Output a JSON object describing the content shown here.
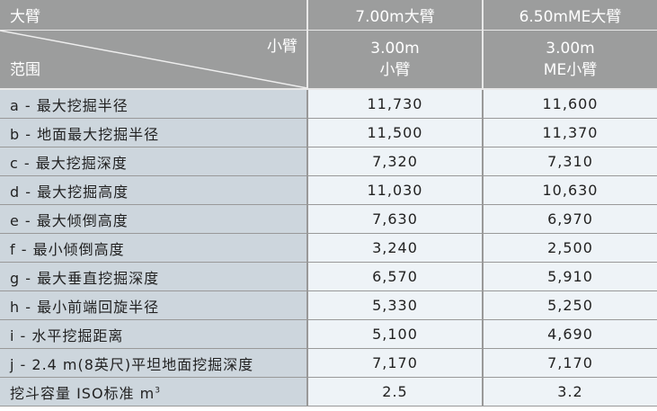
{
  "header": {
    "corner_top": "大臂",
    "corner_diag_right": "小臂",
    "corner_diag_left": "范围",
    "columns": [
      {
        "boom": "7.00m大臂",
        "arm_line1": "3.00m",
        "arm_line2": "小臂"
      },
      {
        "boom": "6.50mME大臂",
        "arm_line1": "3.00m",
        "arm_line2": "ME小臂"
      }
    ]
  },
  "rows": [
    {
      "label": "a - 最大挖掘半径",
      "v1": "11,730",
      "v2": "11,600"
    },
    {
      "label": "b - 地面最大挖掘半径",
      "v1": "11,500",
      "v2": "11,370"
    },
    {
      "label": "c - 最大挖掘深度",
      "v1": "7,320",
      "v2": "7,310"
    },
    {
      "label": "d - 最大挖掘高度",
      "v1": "11,030",
      "v2": "10,630"
    },
    {
      "label": "e - 最大倾倒高度",
      "v1": "7,630",
      "v2": "6,970"
    },
    {
      "label": "f - 最小倾倒高度",
      "v1": "3,240",
      "v2": "2,500"
    },
    {
      "label": "g - 最大垂直挖掘深度",
      "v1": "6,570",
      "v2": "5,910"
    },
    {
      "label": "h - 最小前端回旋半径",
      "v1": "5,330",
      "v2": "5,250"
    },
    {
      "label": "i - 水平挖掘距离",
      "v1": "5,100",
      "v2": "4,690"
    },
    {
      "label": "j - 2.4 m(8英尺)平坦地面挖掘深度",
      "v1": "7,170",
      "v2": "7,170"
    }
  ],
  "bucket": {
    "label": "挖斗容量 ISO标准  m",
    "unit_sup": "3",
    "v1": "2.5",
    "v2": "3.2"
  }
}
